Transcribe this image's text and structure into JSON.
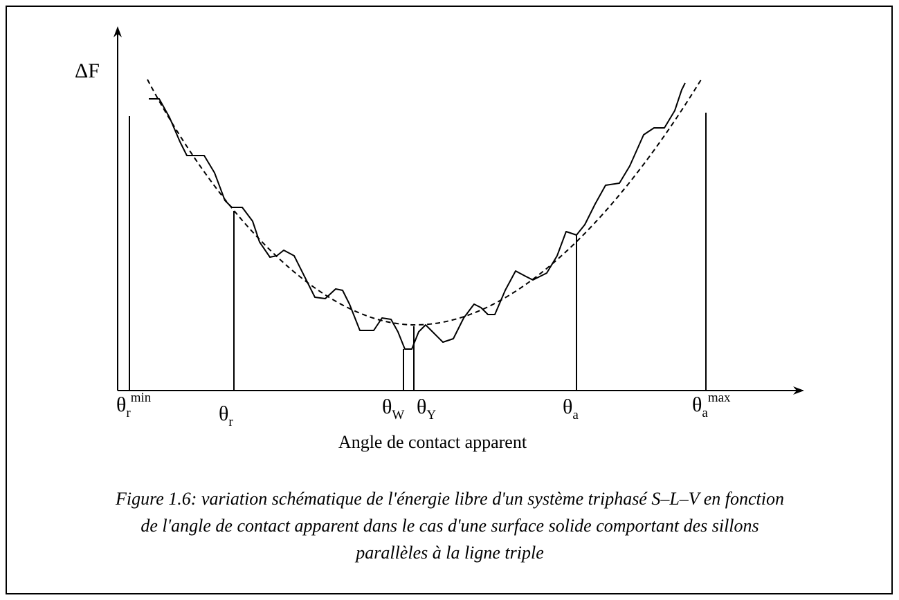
{
  "y_axis_label": "ΔF",
  "x_axis_label": "Angle de contact apparent",
  "markers": [
    {
      "symbol": "θ",
      "sub": "r",
      "sup": "min"
    },
    {
      "symbol": "θ",
      "sub": "r"
    },
    {
      "symbol": "θ",
      "sub": "W"
    },
    {
      "symbol": "θ",
      "sub": "Y"
    },
    {
      "symbol": "θ",
      "sub": "a"
    },
    {
      "symbol": "θ",
      "sub": "a",
      "sup": "max"
    }
  ],
  "caption": [
    "Figure 1.6: variation schématique de l'énergie libre d'un système triphasé S–L–V en fonction",
    "de l'angle de contact apparent dans le cas d'une surface solide comportant des sillons",
    "parallèles à la ligne triple"
  ]
}
